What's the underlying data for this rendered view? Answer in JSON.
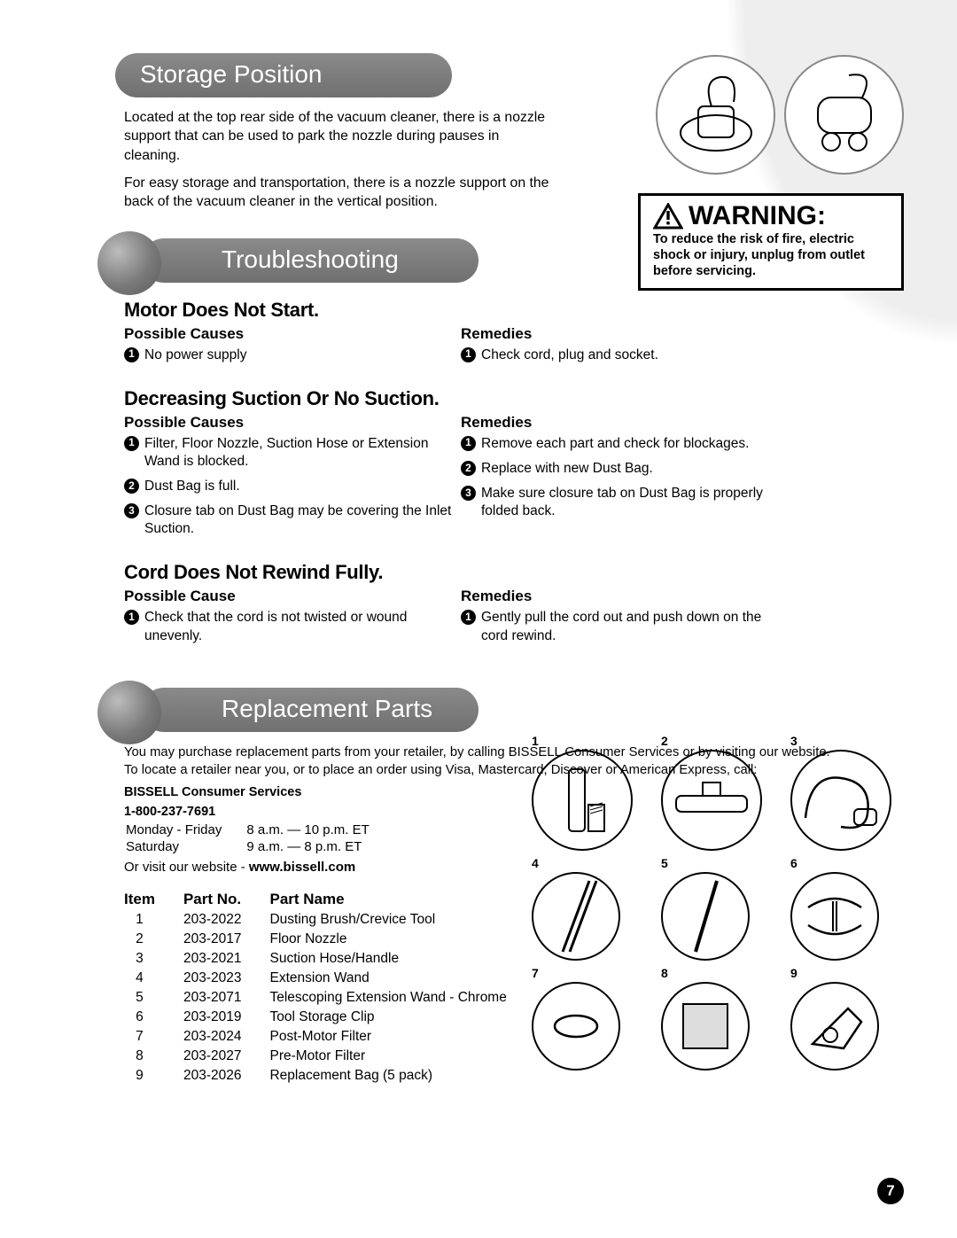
{
  "page_number": "7",
  "sections": {
    "storage": {
      "title": "Storage Position",
      "para1": "Located at the top rear side of the vacuum cleaner, there is a nozzle support that can be used to park the nozzle during pauses in cleaning.",
      "para2": "For easy storage and transportation, there is a nozzle support on the back of the vacuum cleaner in the vertical position."
    },
    "warning": {
      "title": "WARNING:",
      "text": "To reduce the risk of fire, electric shock or injury, unplug from outlet before servicing."
    },
    "troubleshooting": {
      "title": "Troubleshooting",
      "issues": [
        {
          "title": "Motor Does Not Start.",
          "causes_label": "Possible Causes",
          "remedies_label": "Remedies",
          "causes": [
            "No power supply"
          ],
          "remedies": [
            "Check cord, plug and socket."
          ]
        },
        {
          "title": "Decreasing Suction Or No Suction.",
          "causes_label": "Possible Causes",
          "remedies_label": "Remedies",
          "causes": [
            "Filter, Floor Nozzle, Suction Hose or Extension Wand is blocked.",
            "Dust Bag is full.",
            "Closure tab on Dust Bag may be covering the Inlet Suction."
          ],
          "remedies": [
            "Remove each part and check for blockages.",
            "Replace with new Dust Bag.",
            "Make sure closure tab on Dust Bag is properly folded back."
          ]
        },
        {
          "title": "Cord Does Not Rewind Fully.",
          "causes_label": "Possible Cause",
          "remedies_label": "Remedies",
          "causes": [
            "Check that the cord is not twisted or wound unevenly."
          ],
          "remedies": [
            "Gently pull the cord out and push down on the cord rewind."
          ]
        }
      ]
    },
    "replacement": {
      "title": "Replacement Parts",
      "intro": "You may purchase replacement parts from your retailer, by calling BISSELL Consumer Services or by visiting our website. To locate a retailer near you, or to place an order using Visa, Mastercard, Discover or American Express, call:",
      "consumer_label": "BISSELL Consumer Services",
      "phone": "1-800-237-7691",
      "hours": [
        {
          "days": "Monday - Friday",
          "time": "8 a.m. — 10 p.m. ET"
        },
        {
          "days": "Saturday",
          "time": "9 a.m. — 8 p.m. ET"
        }
      ],
      "website_prefix": "Or visit our website - ",
      "website": "www.bissell.com",
      "table": {
        "headers": {
          "item": "Item",
          "partno": "Part No.",
          "partname": "Part Name"
        },
        "rows": [
          {
            "item": "1",
            "no": "203-2022",
            "name": "Dusting Brush/Crevice Tool"
          },
          {
            "item": "2",
            "no": "203-2017",
            "name": "Floor Nozzle"
          },
          {
            "item": "3",
            "no": "203-2021",
            "name": "Suction Hose/Handle"
          },
          {
            "item": "4",
            "no": "203-2023",
            "name": "Extension Wand"
          },
          {
            "item": "5",
            "no": "203-2071",
            "name": "Telescoping Extension Wand - Chrome"
          },
          {
            "item": "6",
            "no": "203-2019",
            "name": "Tool Storage Clip"
          },
          {
            "item": "7",
            "no": "203-2024",
            "name": "Post-Motor Filter"
          },
          {
            "item": "8",
            "no": "203-2027",
            "name": "Pre-Motor Filter"
          },
          {
            "item": "9",
            "no": "203-2026",
            "name": "Replacement Bag (5 pack)"
          }
        ]
      },
      "grid_labels": [
        "1",
        "2",
        "3",
        "4",
        "5",
        "6",
        "7",
        "8",
        "9"
      ]
    }
  },
  "styling": {
    "pill_bg_top": "#8a8a8a",
    "pill_bg_bottom": "#707070",
    "pill_text": "#ffffff",
    "ball_light": "#bcbcbc",
    "ball_dark": "#5a5a5a",
    "bg_curve": "#eeeeee",
    "text_color": "#000000",
    "heading_font_size_pt": 28,
    "issue_font_size_pt": 22,
    "subhead_font_size_pt": 17,
    "body_font_size_pt": 15.5,
    "warning_title_pt": 30
  }
}
